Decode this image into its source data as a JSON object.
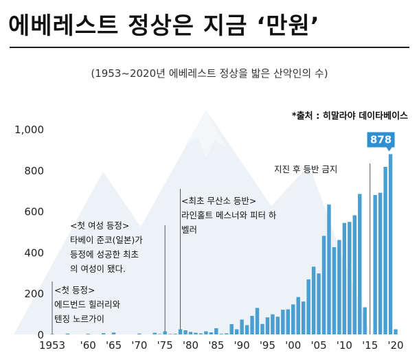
{
  "header": {
    "title": "에베레스트 정상은 지금 ‘만원’",
    "subtitle": "(1953~2020년 에베레스트 정상을 밟은 산악인의 수)",
    "source": "*출처 : 히말라야 데이타베이스"
  },
  "colors": {
    "bar": "#4a9fd0",
    "highlight_badge": "#2f8fd0",
    "axis_text": "#222222",
    "mountain": "#dfe7ee"
  },
  "annotations": {
    "first_ascent": {
      "heading": "<첫 등정>",
      "lines": [
        "에드번드 힐러리와",
        "텐징 노르가이"
      ]
    },
    "first_female": {
      "heading": "<첫 여성 등정>",
      "lines": [
        "타베이 준코(일본)가",
        "등정에 성공한 최초",
        "의 여성이 됐다."
      ]
    },
    "first_no_oxygen": {
      "heading": "<최초 무산소 등반>",
      "lines": [
        "라인홀트 메스너와 피터 하",
        "벨러"
      ]
    },
    "quake_ban": {
      "heading": "",
      "lines": [
        "지진 후 등반 금지"
      ]
    },
    "peak_label": "878"
  },
  "chart_data": {
    "type": "bar",
    "title": "(1953~2020년 에베레스트 정상을 밟은 산악인의 수)",
    "xlabel": "",
    "ylabel": "",
    "ylim": [
      0,
      1000
    ],
    "yticks": [
      "0",
      "200",
      "400",
      "600",
      "800",
      "1,000"
    ],
    "xticks": [
      {
        "year": 1953,
        "label": "1953"
      },
      {
        "year": 1960,
        "label": "'60"
      },
      {
        "year": 1965,
        "label": "'65"
      },
      {
        "year": 1970,
        "label": "'70"
      },
      {
        "year": 1975,
        "label": "'75"
      },
      {
        "year": 1980,
        "label": "'80"
      },
      {
        "year": 1985,
        "label": "'85"
      },
      {
        "year": 1990,
        "label": "'90"
      },
      {
        "year": 1995,
        "label": "'95"
      },
      {
        "year": 2000,
        "label": "'00"
      },
      {
        "year": 2005,
        "label": "'05"
      },
      {
        "year": 2010,
        "label": "'10"
      },
      {
        "year": 2015,
        "label": "'15"
      },
      {
        "year": 2020,
        "label": "'20"
      }
    ],
    "grid": false,
    "x": [
      1953,
      1954,
      1955,
      1956,
      1957,
      1958,
      1959,
      1960,
      1961,
      1962,
      1963,
      1964,
      1965,
      1966,
      1967,
      1968,
      1969,
      1970,
      1971,
      1972,
      1973,
      1974,
      1975,
      1976,
      1977,
      1978,
      1979,
      1980,
      1981,
      1982,
      1983,
      1984,
      1985,
      1986,
      1987,
      1988,
      1989,
      1990,
      1991,
      1992,
      1993,
      1994,
      1995,
      1996,
      1997,
      1998,
      1999,
      2000,
      2001,
      2002,
      2003,
      2004,
      2005,
      2006,
      2007,
      2008,
      2009,
      2010,
      2011,
      2012,
      2013,
      2014,
      2015,
      2016,
      2017,
      2018,
      2019,
      2020
    ],
    "values": [
      2,
      0,
      0,
      4,
      0,
      0,
      0,
      3,
      0,
      0,
      6,
      0,
      9,
      0,
      0,
      0,
      0,
      4,
      0,
      0,
      8,
      2,
      15,
      2,
      3,
      25,
      20,
      12,
      8,
      5,
      15,
      10,
      30,
      3,
      5,
      50,
      25,
      72,
      45,
      90,
      129,
      51,
      83,
      98,
      86,
      120,
      122,
      146,
      182,
      160,
      268,
      330,
      297,
      480,
      633,
      425,
      460,
      543,
      548,
      580,
      684,
      132,
      0,
      679,
      690,
      816,
      878,
      25
    ],
    "highlight": {
      "year": 2019,
      "value": 878
    }
  }
}
